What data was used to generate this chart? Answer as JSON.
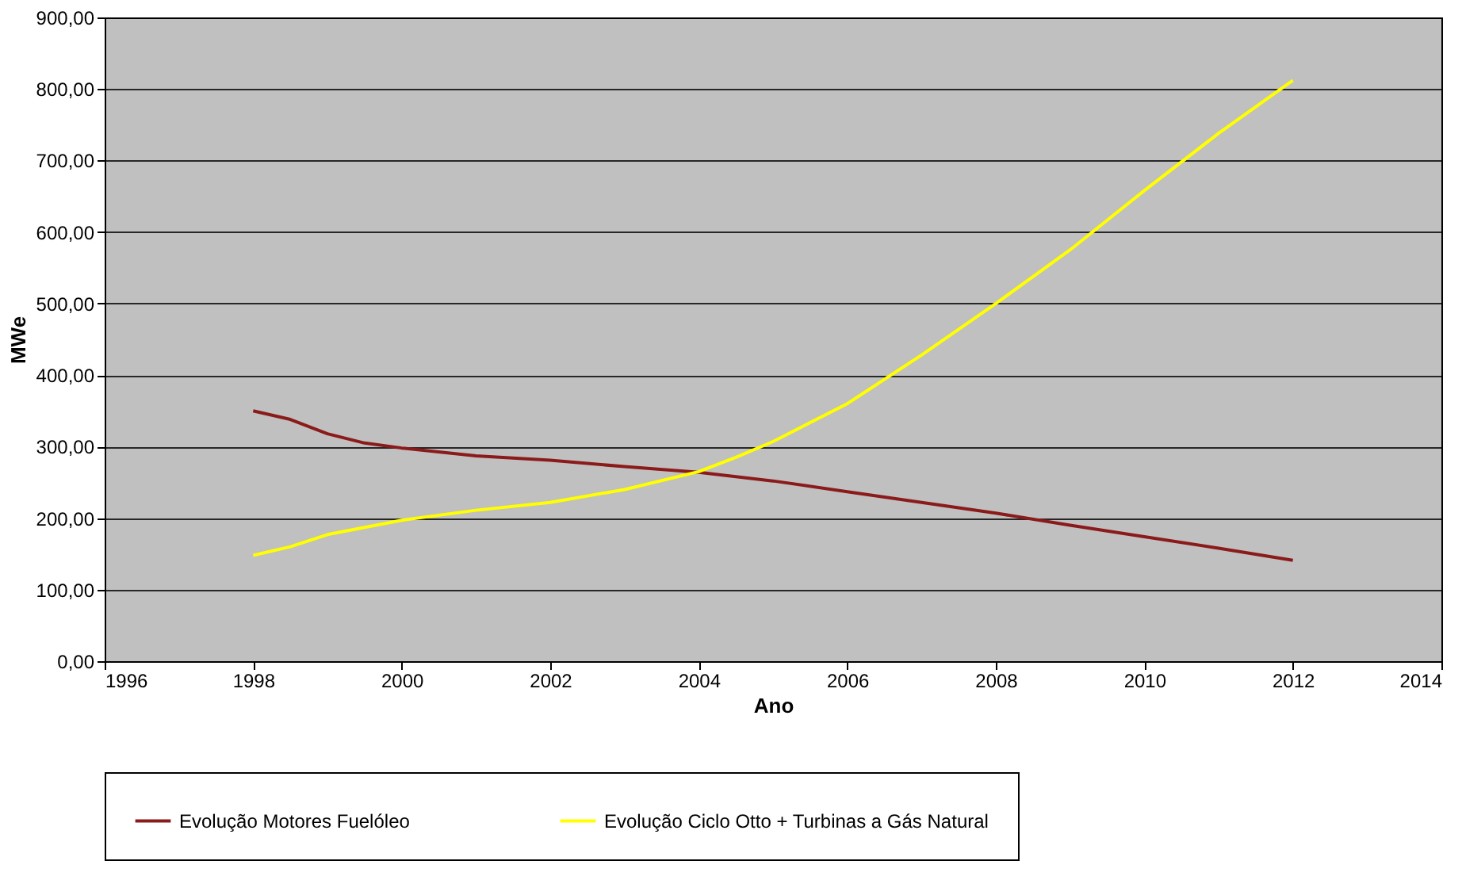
{
  "chart_data": {
    "type": "line",
    "xlabel": "Ano",
    "ylabel": "MWe",
    "xlim": [
      1996,
      2014
    ],
    "xticks": [
      1996,
      1998,
      2000,
      2002,
      2004,
      2006,
      2008,
      2010,
      2012,
      2014
    ],
    "ylim": [
      0,
      900
    ],
    "yticks": [
      {
        "value": 0,
        "label": "0,00"
      },
      {
        "value": 100,
        "label": "100,00"
      },
      {
        "value": 200,
        "label": "200,00"
      },
      {
        "value": 300,
        "label": "300,00"
      },
      {
        "value": 400,
        "label": "400,00"
      },
      {
        "value": 500,
        "label": "500,00"
      },
      {
        "value": 600,
        "label": "600,00"
      },
      {
        "value": 700,
        "label": "700,00"
      },
      {
        "value": 800,
        "label": "800,00"
      },
      {
        "value": 900,
        "label": "900,00"
      }
    ],
    "grid": "y",
    "legend": "bottom",
    "marker": "none",
    "line_style": "solid",
    "series": [
      {
        "name": "Evolução Motores Fuelóleo",
        "color": "#8b1a1a",
        "x": [
          1998,
          1998.5,
          1999,
          1999.5,
          2000,
          2001,
          2002,
          2003,
          2004,
          2005,
          2006,
          2007,
          2008,
          2009,
          2010,
          2011,
          2012
        ],
        "values": [
          350,
          338,
          318,
          305,
          298,
          287,
          281,
          272,
          264,
          252,
          237,
          222,
          207,
          190,
          174,
          158,
          141
        ]
      },
      {
        "name": "Evolução Ciclo Otto + Turbinas a Gás Natural",
        "color": "#ffff00",
        "x": [
          1998,
          1998.5,
          1999,
          2000,
          2001,
          2002,
          2003,
          2004,
          2004.5,
          2005,
          2006,
          2007,
          2008,
          2009,
          2010,
          2011,
          2012
        ],
        "values": [
          148,
          160,
          177,
          197,
          211,
          222,
          240,
          265,
          285,
          307,
          360,
          428,
          500,
          575,
          658,
          738,
          812
        ]
      }
    ]
  }
}
